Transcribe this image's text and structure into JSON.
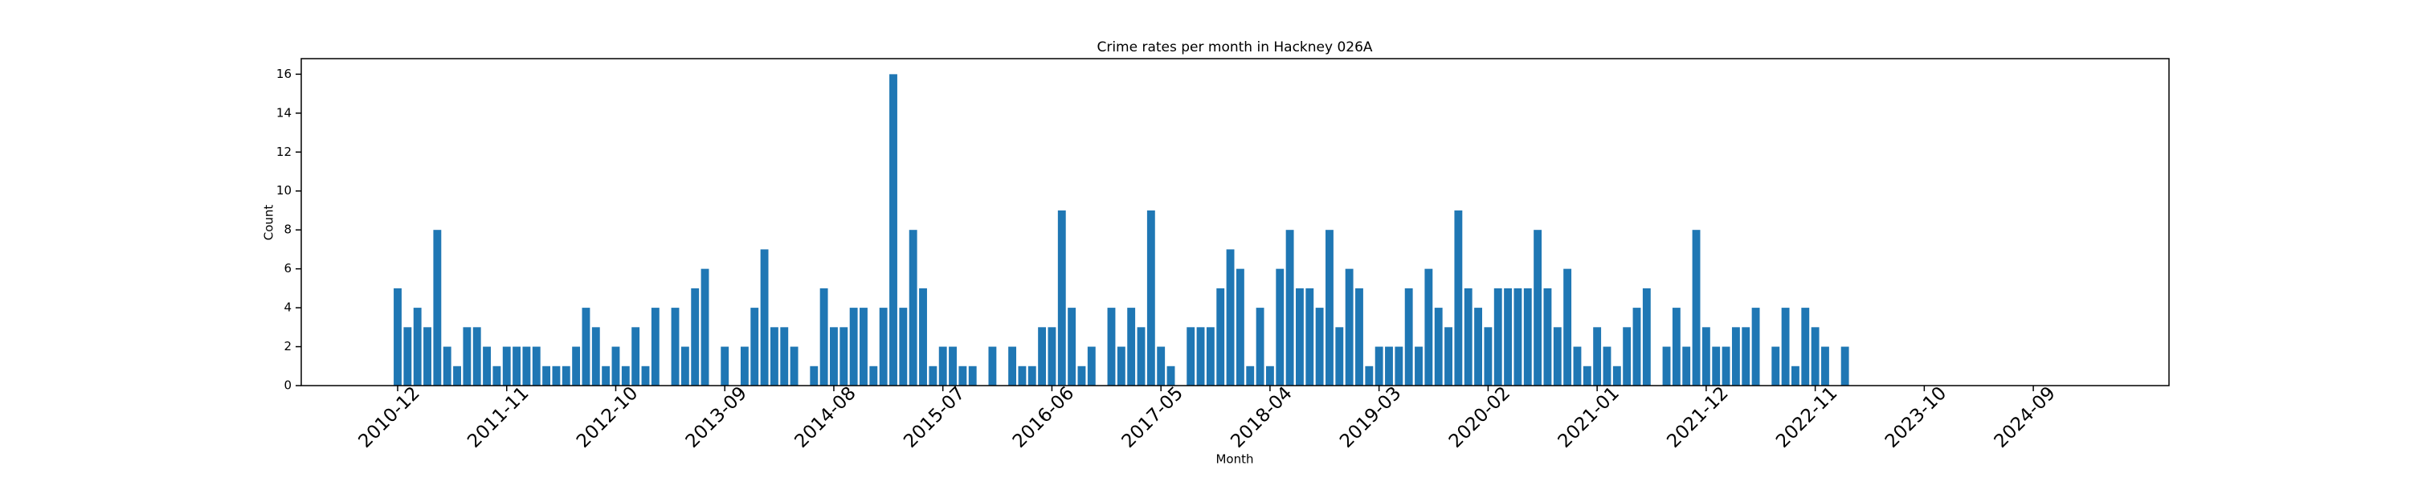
{
  "chart_data": {
    "type": "bar",
    "title": "Crime rates per month in Hackney 026A",
    "x_label": "Month",
    "y_label": "Count",
    "color": "#1f77b4",
    "categories": [
      "2010-12",
      null,
      null,
      null,
      null,
      null,
      null,
      null,
      null,
      null,
      null,
      "2011-11",
      null,
      null,
      null,
      null,
      null,
      null,
      null,
      null,
      null,
      null,
      "2012-10",
      null,
      null,
      null,
      null,
      null,
      null,
      null,
      null,
      null,
      null,
      "2013-09",
      null,
      null,
      null,
      null,
      null,
      null,
      null,
      null,
      null,
      null,
      "2014-08",
      null,
      null,
      null,
      null,
      null,
      null,
      null,
      null,
      null,
      null,
      "2015-07",
      null,
      null,
      null,
      null,
      null,
      null,
      null,
      null,
      null,
      null,
      "2016-06",
      null,
      null,
      null,
      null,
      null,
      null,
      null,
      null,
      null,
      null,
      "2017-05",
      null,
      null,
      null,
      null,
      null,
      null,
      null,
      null,
      null,
      null,
      "2018-04",
      null,
      null,
      null,
      null,
      null,
      null,
      null,
      null,
      null,
      null,
      "2019-03",
      null,
      null,
      null,
      null,
      null,
      null,
      null,
      null,
      null,
      null,
      "2020-02",
      null,
      null,
      null,
      null,
      null,
      null,
      null,
      null,
      null,
      null,
      "2021-01",
      null,
      null,
      null,
      null,
      null,
      null,
      null,
      null,
      null,
      null,
      "2021-12",
      null,
      null,
      null,
      null,
      null,
      null,
      null,
      null,
      null,
      null,
      "2022-11",
      null,
      null,
      null,
      null,
      null,
      null,
      null,
      null,
      null,
      null,
      "2023-10",
      null,
      null,
      null,
      null,
      null,
      null,
      null,
      null,
      null,
      null,
      "2024-09"
    ],
    "values": [
      5,
      3,
      4,
      3,
      8,
      2,
      1,
      3,
      3,
      2,
      1,
      2,
      2,
      2,
      2,
      1,
      1,
      1,
      2,
      4,
      3,
      1,
      2,
      1,
      3,
      1,
      4,
      0,
      4,
      2,
      5,
      6,
      0,
      2,
      0,
      2,
      4,
      7,
      3,
      3,
      2,
      0,
      1,
      5,
      3,
      3,
      4,
      4,
      1,
      4,
      16,
      4,
      8,
      5,
      1,
      2,
      2,
      1,
      1,
      0,
      2,
      0,
      2,
      1,
      1,
      3,
      3,
      9,
      4,
      1,
      2,
      0,
      4,
      2,
      4,
      3,
      9,
      2,
      1,
      0,
      3,
      3,
      3,
      5,
      7,
      6,
      1,
      4,
      1,
      6,
      8,
      5,
      5,
      4,
      8,
      3,
      6,
      5,
      1,
      2,
      2,
      2,
      5,
      2,
      6,
      4,
      3,
      9,
      5,
      4,
      3,
      5,
      5,
      5,
      5,
      8,
      5,
      3,
      6,
      2,
      1,
      3,
      2,
      1,
      3,
      4,
      5,
      0,
      2,
      4,
      2,
      8,
      3,
      2,
      2,
      3,
      3,
      4,
      0,
      2,
      4,
      1,
      4,
      3,
      2,
      0,
      2,
      null,
      null,
      null,
      null,
      null,
      null,
      null,
      null,
      null,
      null,
      null,
      null,
      null,
      null,
      null,
      null,
      null,
      null,
      null
    ],
    "ylim": [
      0,
      16.8
    ],
    "yticks": [
      0,
      2,
      4,
      6,
      8,
      10,
      12,
      14,
      16
    ],
    "grid": false
  }
}
